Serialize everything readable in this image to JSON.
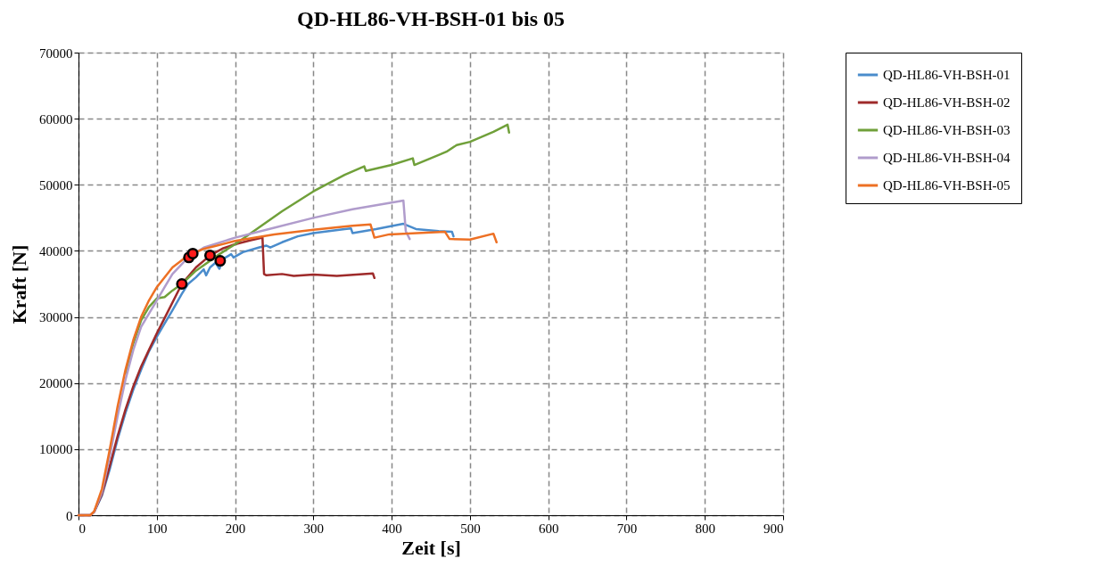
{
  "chart_data": {
    "type": "line",
    "title": "QD-HL86-VH-BSH-01 bis 05",
    "xlabel": "Zeit [s]",
    "ylabel": "Kraft [N]",
    "xlim": [
      0,
      900
    ],
    "xticks": [
      0,
      100,
      200,
      300,
      400,
      500,
      600,
      700,
      800,
      900
    ],
    "ylim": [
      0,
      70000
    ],
    "yticks": [
      0,
      10000,
      20000,
      30000,
      40000,
      50000,
      60000,
      70000
    ],
    "grid": true,
    "legend": "right",
    "line_style": "solid",
    "marker": "none",
    "series": [
      {
        "name": "QD-HL86-VH-BSH-01",
        "color": "#4a8ccc",
        "x": [
          0,
          15,
          20,
          30,
          40,
          50,
          60,
          70,
          80,
          90,
          100,
          110,
          120,
          132,
          140,
          150,
          160,
          163,
          168,
          175,
          180,
          185,
          195,
          198,
          210,
          230,
          240,
          245,
          260,
          280,
          300,
          340,
          348,
          350,
          380,
          415,
          431,
          460,
          477,
          479
        ],
        "values": [
          0,
          0,
          500,
          3000,
          7000,
          11500,
          15500,
          19000,
          22000,
          24800,
          27000,
          29000,
          31000,
          33500,
          35000,
          36000,
          37200,
          36300,
          37500,
          38200,
          37300,
          38800,
          39500,
          39000,
          39800,
          40500,
          40800,
          40500,
          41300,
          42200,
          42700,
          43300,
          43400,
          42700,
          43300,
          44100,
          43300,
          43000,
          42900,
          42200
        ]
      },
      {
        "name": "QD-HL86-VH-BSH-02",
        "color": "#9e2a2a",
        "x": [
          0,
          15,
          20,
          30,
          40,
          50,
          60,
          70,
          80,
          90,
          100,
          115,
          132,
          150,
          168,
          185,
          200,
          220,
          235,
          237,
          240,
          260,
          275,
          300,
          330,
          376,
          378
        ],
        "values": [
          0,
          0,
          500,
          3200,
          7500,
          12000,
          16000,
          19500,
          22500,
          25000,
          27500,
          31000,
          35000,
          37500,
          39300,
          40400,
          41000,
          41600,
          42000,
          36500,
          36300,
          36500,
          36200,
          36400,
          36200,
          36600,
          35900
        ]
      },
      {
        "name": "QD-HL86-VH-BSH-03",
        "color": "#70a03a",
        "x": [
          60,
          70,
          80,
          90,
          100,
          110,
          120,
          132,
          150,
          180,
          200,
          230,
          260,
          300,
          340,
          365,
          367,
          400,
          427,
          429,
          460,
          470,
          483,
          500,
          530,
          548,
          550
        ],
        "values": [
          21500,
          26000,
          29500,
          31500,
          32800,
          33000,
          34000,
          35000,
          37000,
          39500,
          41000,
          43500,
          46000,
          49000,
          51500,
          52800,
          52100,
          53000,
          54000,
          53000,
          54500,
          55000,
          56000,
          56500,
          58000,
          59100,
          57900
        ]
      },
      {
        "name": "QD-HL86-VH-BSH-04",
        "color": "#b09ccc",
        "x": [
          0,
          15,
          20,
          30,
          40,
          50,
          60,
          70,
          80,
          90,
          100,
          110,
          120,
          140,
          160,
          200,
          250,
          300,
          350,
          400,
          415,
          418,
          423
        ],
        "values": [
          0,
          0,
          500,
          3500,
          9000,
          15000,
          20500,
          25000,
          28500,
          30500,
          32500,
          34500,
          36500,
          39000,
          40500,
          42000,
          43500,
          45000,
          46300,
          47300,
          47600,
          43000,
          41800
        ]
      },
      {
        "name": "QD-HL86-VH-BSH-05",
        "color": "#ed7024",
        "x": [
          0,
          15,
          20,
          30,
          40,
          50,
          60,
          70,
          80,
          90,
          100,
          120,
          140,
          160,
          200,
          250,
          300,
          350,
          373,
          378,
          397,
          468,
          474,
          500,
          530,
          534
        ],
        "values": [
          0,
          0,
          600,
          4000,
          10000,
          16500,
          22000,
          26500,
          30000,
          32500,
          34500,
          37500,
          39300,
          40300,
          41500,
          42500,
          43200,
          43800,
          44000,
          42000,
          42500,
          42900,
          41800,
          41700,
          42600,
          41300
        ]
      },
      {
        "type": "scatter",
        "marker": "circle",
        "color": "#ff1a1a",
        "x": [
          132,
          141,
          146,
          168,
          181
        ],
        "values": [
          35000,
          39000,
          39600,
          39300,
          38500
        ]
      }
    ]
  }
}
